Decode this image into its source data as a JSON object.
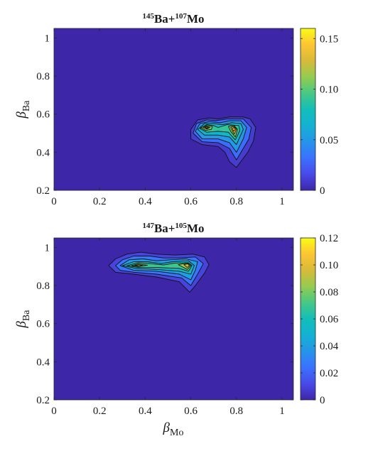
{
  "chart_data": [
    {
      "type": "contour",
      "title": {
        "a_sup": "145",
        "a_text": "Ba+",
        "b_sup": "107",
        "b_text": "Mo"
      },
      "xlabel": {
        "main": "",
        "sub": ""
      },
      "ylabel": {
        "main": "β",
        "sub": "Ba"
      },
      "xlim": [
        0,
        1.05
      ],
      "ylim": [
        0.2,
        1.05
      ],
      "xticks": [
        "0",
        "0.2",
        "0.4",
        "0.6",
        "0.8",
        "1"
      ],
      "yticks": [
        "0.2",
        "0.4",
        "0.6",
        "0.8",
        "1"
      ],
      "colorbar": {
        "min": 0,
        "max": 0.16,
        "ticks": [
          "0",
          "0.05",
          "0.10",
          "0.15"
        ],
        "tick_values": [
          0,
          0.05,
          0.1,
          0.15
        ]
      },
      "peaks": [
        {
          "x": 0.66,
          "y": 0.53,
          "value": 0.16
        },
        {
          "x": 0.79,
          "y": 0.52,
          "value": 0.15
        }
      ],
      "contour_levels": [
        0.01,
        0.03,
        0.05,
        0.07,
        0.09,
        0.11,
        0.13,
        0.15
      ],
      "contours": [
        {
          "level": 0.01,
          "points": [
            [
              0.6,
              0.47
            ],
            [
              0.6,
              0.52
            ],
            [
              0.63,
              0.57
            ],
            [
              0.68,
              0.58
            ],
            [
              0.72,
              0.575
            ],
            [
              0.77,
              0.585
            ],
            [
              0.83,
              0.585
            ],
            [
              0.86,
              0.575
            ],
            [
              0.885,
              0.53
            ],
            [
              0.875,
              0.46
            ],
            [
              0.85,
              0.4
            ],
            [
              0.8,
              0.32
            ],
            [
              0.77,
              0.35
            ],
            [
              0.75,
              0.4
            ],
            [
              0.72,
              0.43
            ],
            [
              0.65,
              0.44
            ]
          ]
        },
        {
          "level": 0.03,
          "points": [
            [
              0.61,
              0.5
            ],
            [
              0.625,
              0.55
            ],
            [
              0.67,
              0.57
            ],
            [
              0.71,
              0.565
            ],
            [
              0.76,
              0.575
            ],
            [
              0.83,
              0.575
            ],
            [
              0.865,
              0.53
            ],
            [
              0.855,
              0.47
            ],
            [
              0.83,
              0.42
            ],
            [
              0.8,
              0.36
            ],
            [
              0.77,
              0.42
            ],
            [
              0.72,
              0.45
            ],
            [
              0.65,
              0.455
            ]
          ]
        },
        {
          "level": 0.05,
          "points": [
            [
              0.62,
              0.51
            ],
            [
              0.64,
              0.55
            ],
            [
              0.68,
              0.56
            ],
            [
              0.73,
              0.555
            ],
            [
              0.77,
              0.565
            ],
            [
              0.82,
              0.565
            ],
            [
              0.845,
              0.53
            ],
            [
              0.83,
              0.47
            ],
            [
              0.8,
              0.4
            ],
            [
              0.77,
              0.45
            ],
            [
              0.72,
              0.47
            ],
            [
              0.65,
              0.47
            ]
          ]
        },
        {
          "level": 0.07,
          "points": [
            [
              0.63,
              0.52
            ],
            [
              0.66,
              0.55
            ],
            [
              0.7,
              0.55
            ],
            [
              0.74,
              0.545
            ],
            [
              0.78,
              0.555
            ],
            [
              0.82,
              0.55
            ],
            [
              0.83,
              0.52
            ],
            [
              0.8,
              0.44
            ],
            [
              0.77,
              0.48
            ],
            [
              0.72,
              0.49
            ],
            [
              0.66,
              0.49
            ]
          ]
        },
        {
          "level": 0.09,
          "points": [
            [
              0.64,
              0.525
            ],
            [
              0.67,
              0.545
            ],
            [
              0.7,
              0.54
            ],
            [
              0.72,
              0.53
            ],
            [
              0.76,
              0.545
            ],
            [
              0.81,
              0.54
            ],
            [
              0.815,
              0.515
            ],
            [
              0.795,
              0.465
            ],
            [
              0.765,
              0.505
            ],
            [
              0.72,
              0.51
            ],
            [
              0.67,
              0.505
            ]
          ]
        },
        {
          "level": 0.11,
          "points": [
            [
              0.645,
              0.53
            ],
            [
              0.67,
              0.54
            ],
            [
              0.695,
              0.535
            ],
            [
              0.69,
              0.52
            ],
            [
              0.665,
              0.515
            ]
          ]
        },
        {
          "level": 0.11,
          "points": [
            [
              0.765,
              0.535
            ],
            [
              0.79,
              0.54
            ],
            [
              0.805,
              0.52
            ],
            [
              0.795,
              0.48
            ],
            [
              0.775,
              0.51
            ]
          ]
        },
        {
          "level": 0.13,
          "points": [
            [
              0.655,
              0.53
            ],
            [
              0.67,
              0.535
            ],
            [
              0.685,
              0.53
            ],
            [
              0.67,
              0.522
            ]
          ]
        },
        {
          "level": 0.13,
          "points": [
            [
              0.775,
              0.53
            ],
            [
              0.79,
              0.535
            ],
            [
              0.8,
              0.52
            ],
            [
              0.79,
              0.495
            ]
          ]
        },
        {
          "level": 0.15,
          "points": [
            [
              0.663,
              0.53
            ],
            [
              0.672,
              0.532
            ],
            [
              0.678,
              0.528
            ],
            [
              0.668,
              0.526
            ]
          ]
        },
        {
          "level": 0.15,
          "points": [
            [
              0.783,
              0.525
            ],
            [
              0.79,
              0.53
            ],
            [
              0.795,
              0.52
            ],
            [
              0.788,
              0.51
            ]
          ]
        }
      ]
    },
    {
      "type": "contour",
      "title": {
        "a_sup": "147",
        "a_text": "Ba+",
        "b_sup": "105",
        "b_text": "Mo"
      },
      "xlabel": {
        "main": "β",
        "sub": "Mo"
      },
      "ylabel": {
        "main": "β",
        "sub": "Ba"
      },
      "xlim": [
        0,
        1.05
      ],
      "ylim": [
        0.2,
        1.05
      ],
      "xticks": [
        "0",
        "0.2",
        "0.4",
        "0.6",
        "0.8",
        "1"
      ],
      "yticks": [
        "0.2",
        "0.4",
        "0.6",
        "0.8",
        "1"
      ],
      "colorbar": {
        "min": 0,
        "max": 0.12,
        "ticks": [
          "0",
          "0.02",
          "0.04",
          "0.06",
          "0.08",
          "0.10",
          "0.12"
        ],
        "tick_values": [
          0,
          0.02,
          0.04,
          0.06,
          0.08,
          0.1,
          0.12
        ]
      },
      "peaks": [
        {
          "x": 0.37,
          "y": 0.91,
          "value": 0.1
        },
        {
          "x": 0.59,
          "y": 0.91,
          "value": 0.1
        }
      ],
      "contour_levels": [
        0.01,
        0.025,
        0.04,
        0.055,
        0.07,
        0.085,
        0.095
      ],
      "contours": [
        {
          "level": 0.01,
          "points": [
            [
              0.24,
              0.905
            ],
            [
              0.27,
              0.94
            ],
            [
              0.32,
              0.965
            ],
            [
              0.38,
              0.975
            ],
            [
              0.45,
              0.965
            ],
            [
              0.53,
              0.96
            ],
            [
              0.61,
              0.965
            ],
            [
              0.66,
              0.95
            ],
            [
              0.68,
              0.91
            ],
            [
              0.66,
              0.865
            ],
            [
              0.62,
              0.8
            ],
            [
              0.595,
              0.765
            ],
            [
              0.55,
              0.82
            ],
            [
              0.45,
              0.845
            ],
            [
              0.35,
              0.86
            ],
            [
              0.27,
              0.87
            ]
          ]
        },
        {
          "level": 0.025,
          "points": [
            [
              0.27,
              0.905
            ],
            [
              0.3,
              0.935
            ],
            [
              0.35,
              0.955
            ],
            [
              0.42,
              0.955
            ],
            [
              0.48,
              0.945
            ],
            [
              0.55,
              0.945
            ],
            [
              0.62,
              0.95
            ],
            [
              0.655,
              0.915
            ],
            [
              0.63,
              0.86
            ],
            [
              0.6,
              0.8
            ],
            [
              0.56,
              0.84
            ],
            [
              0.45,
              0.86
            ],
            [
              0.35,
              0.87
            ],
            [
              0.29,
              0.88
            ]
          ]
        },
        {
          "level": 0.04,
          "points": [
            [
              0.29,
              0.905
            ],
            [
              0.33,
              0.935
            ],
            [
              0.39,
              0.94
            ],
            [
              0.45,
              0.93
            ],
            [
              0.51,
              0.935
            ],
            [
              0.58,
              0.94
            ],
            [
              0.63,
              0.925
            ],
            [
              0.62,
              0.88
            ],
            [
              0.6,
              0.83
            ],
            [
              0.55,
              0.86
            ],
            [
              0.45,
              0.875
            ],
            [
              0.35,
              0.88
            ]
          ]
        },
        {
          "level": 0.055,
          "points": [
            [
              0.3,
              0.905
            ],
            [
              0.35,
              0.925
            ],
            [
              0.41,
              0.925
            ],
            [
              0.47,
              0.915
            ],
            [
              0.52,
              0.925
            ],
            [
              0.59,
              0.93
            ],
            [
              0.615,
              0.905
            ],
            [
              0.6,
              0.86
            ],
            [
              0.55,
              0.875
            ],
            [
              0.45,
              0.885
            ],
            [
              0.36,
              0.89
            ]
          ]
        },
        {
          "level": 0.07,
          "points": [
            [
              0.32,
              0.905
            ],
            [
              0.37,
              0.92
            ],
            [
              0.42,
              0.915
            ],
            [
              0.48,
              0.908
            ],
            [
              0.53,
              0.918
            ],
            [
              0.59,
              0.92
            ],
            [
              0.605,
              0.905
            ],
            [
              0.59,
              0.875
            ],
            [
              0.55,
              0.89
            ],
            [
              0.45,
              0.895
            ],
            [
              0.37,
              0.895
            ]
          ]
        },
        {
          "level": 0.085,
          "points": [
            [
              0.34,
              0.905
            ],
            [
              0.37,
              0.913
            ],
            [
              0.41,
              0.907
            ],
            [
              0.37,
              0.9
            ]
          ]
        },
        {
          "level": 0.085,
          "points": [
            [
              0.545,
              0.91
            ],
            [
              0.585,
              0.918
            ],
            [
              0.6,
              0.905
            ],
            [
              0.585,
              0.885
            ]
          ]
        },
        {
          "level": 0.095,
          "points": [
            [
              0.355,
              0.906
            ],
            [
              0.372,
              0.909
            ],
            [
              0.39,
              0.905
            ],
            [
              0.372,
              0.902
            ]
          ]
        },
        {
          "level": 0.095,
          "points": [
            [
              0.57,
              0.91
            ],
            [
              0.588,
              0.914
            ],
            [
              0.594,
              0.904
            ],
            [
              0.584,
              0.895
            ]
          ]
        }
      ]
    }
  ]
}
